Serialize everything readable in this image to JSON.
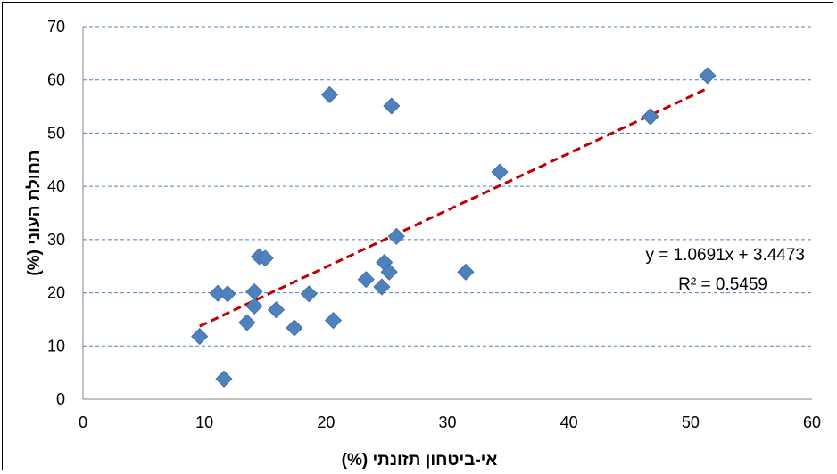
{
  "chart_data": {
    "type": "scatter",
    "xlabel": "אי-ביטחון תזונתי (%)",
    "ylabel": "תחולת העוני (%)",
    "xlim": [
      0,
      60
    ],
    "ylim": [
      0,
      70
    ],
    "x_ticks": [
      "0",
      "10",
      "20",
      "30",
      "40",
      "50",
      "60"
    ],
    "y_ticks": [
      "0",
      "10",
      "20",
      "30",
      "40",
      "50",
      "60",
      "70"
    ],
    "grid": "horizontal dashed",
    "points": [
      {
        "x": 9.6,
        "y": 11.8
      },
      {
        "x": 11.1,
        "y": 19.9
      },
      {
        "x": 11.6,
        "y": 3.8
      },
      {
        "x": 11.9,
        "y": 19.8
      },
      {
        "x": 13.5,
        "y": 14.4
      },
      {
        "x": 14.1,
        "y": 20.2
      },
      {
        "x": 14.1,
        "y": 17.5
      },
      {
        "x": 14.5,
        "y": 26.8
      },
      {
        "x": 15.0,
        "y": 26.5
      },
      {
        "x": 15.9,
        "y": 16.8
      },
      {
        "x": 17.4,
        "y": 13.4
      },
      {
        "x": 18.6,
        "y": 19.8
      },
      {
        "x": 20.3,
        "y": 57.2
      },
      {
        "x": 20.6,
        "y": 14.8
      },
      {
        "x": 23.3,
        "y": 22.5
      },
      {
        "x": 24.6,
        "y": 21.1
      },
      {
        "x": 24.8,
        "y": 25.7
      },
      {
        "x": 25.2,
        "y": 23.9
      },
      {
        "x": 25.4,
        "y": 55.1
      },
      {
        "x": 25.8,
        "y": 30.6
      },
      {
        "x": 31.5,
        "y": 23.9
      },
      {
        "x": 34.3,
        "y": 42.7
      },
      {
        "x": 46.7,
        "y": 53.1
      },
      {
        "x": 51.4,
        "y": 60.8
      }
    ],
    "trendline": {
      "type": "linear",
      "slope": 1.0691,
      "intercept": 3.4473,
      "x_range": [
        9.6,
        51.4
      ],
      "color": "#C00000"
    },
    "equation_label": "y = 1.0691x + 3.4473",
    "r2_label": "R² = 0.5459",
    "marker_color": "#4F81BD",
    "grid_color": "#4F81BD"
  }
}
